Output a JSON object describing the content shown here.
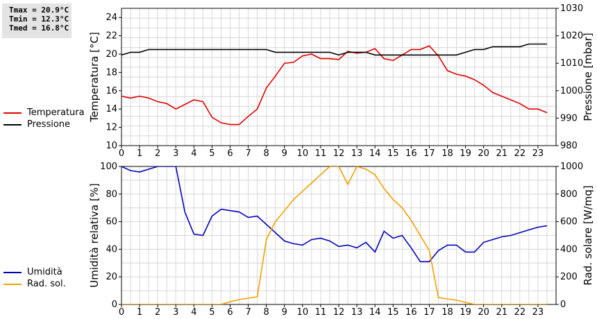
{
  "stats": {
    "tmax": "Tmax = 20.9°C",
    "tmin": "Tmin = 12.3°C",
    "tmed": "Tmed = 16.8°C"
  },
  "legend_top": [
    {
      "name": "Temperatura",
      "color": "#dd0000"
    },
    {
      "name": "Pressione",
      "color": "#000000"
    }
  ],
  "legend_bottom": [
    {
      "name": "Umidità",
      "color": "#0000bb"
    },
    {
      "name": "Rad. sol.",
      "color": "#f0a000"
    }
  ],
  "chart_data": [
    {
      "type": "line",
      "xlim": [
        0,
        24
      ],
      "x_ticks": [
        "0",
        "1",
        "2",
        "3",
        "4",
        "5",
        "6",
        "7",
        "8",
        "9",
        "10",
        "11",
        "12",
        "13",
        "14",
        "15",
        "16",
        "17",
        "18",
        "19",
        "20",
        "21",
        "22",
        "23"
      ],
      "ylabel": "Temperatura [°C]",
      "ylim": [
        10,
        25
      ],
      "y_ticks": [
        "10",
        "12",
        "14",
        "16",
        "18",
        "20",
        "22",
        "24"
      ],
      "y2label": "Pressione [mbar]",
      "y2lim": [
        980,
        1030
      ],
      "y2_ticks": [
        "980",
        "990",
        "1000",
        "1010",
        "1020",
        "1030"
      ],
      "grid": true,
      "legend_position": "left",
      "series": [
        {
          "name": "Temperatura",
          "axis": "left",
          "color": "#dd0000",
          "x": [
            0,
            0.5,
            1,
            1.5,
            2,
            2.5,
            3,
            3.5,
            4,
            4.5,
            5,
            5.5,
            6,
            6.5,
            7,
            7.5,
            8,
            8.5,
            9,
            9.5,
            10,
            10.5,
            11,
            11.5,
            12,
            12.5,
            13,
            13.5,
            14,
            14.5,
            15,
            15.5,
            16,
            16.5,
            17,
            17.5,
            18,
            18.5,
            19,
            19.5,
            20,
            20.5,
            21,
            21.5,
            22,
            22.5,
            23,
            23.5
          ],
          "y": [
            15.4,
            15.2,
            15.4,
            15.2,
            14.8,
            14.6,
            14.0,
            14.5,
            15.0,
            14.8,
            13.1,
            12.5,
            12.3,
            12.3,
            13.2,
            14.0,
            16.3,
            17.6,
            19.0,
            19.1,
            19.8,
            20.0,
            19.5,
            19.5,
            19.4,
            20.3,
            20.1,
            20.2,
            20.6,
            19.5,
            19.3,
            19.9,
            20.5,
            20.5,
            20.9,
            19.8,
            18.2,
            17.8,
            17.6,
            17.2,
            16.6,
            15.8,
            15.4,
            15.0,
            14.6,
            14.0,
            14.0,
            13.6
          ]
        },
        {
          "name": "Pressione",
          "axis": "right",
          "color": "#000000",
          "x": [
            0,
            0.5,
            1,
            1.5,
            2,
            2.5,
            3,
            3.5,
            4,
            4.5,
            5,
            5.5,
            6,
            6.5,
            7,
            7.5,
            8,
            8.5,
            9,
            9.5,
            10,
            10.5,
            11,
            11.5,
            12,
            12.5,
            13,
            13.5,
            14,
            14.5,
            15,
            15.5,
            16,
            16.5,
            17,
            17.5,
            18,
            18.5,
            19,
            19.5,
            20,
            20.5,
            21,
            21.5,
            22,
            22.5,
            23,
            23.5
          ],
          "y": [
            1013,
            1014,
            1014,
            1015,
            1015,
            1015,
            1015,
            1015,
            1015,
            1015,
            1015,
            1015,
            1015,
            1015,
            1015,
            1015,
            1015,
            1014,
            1014,
            1014,
            1014,
            1014,
            1014,
            1014,
            1013,
            1014,
            1014,
            1014,
            1013,
            1013,
            1013,
            1013,
            1013,
            1013,
            1013,
            1013,
            1013,
            1013,
            1014,
            1015,
            1015,
            1016,
            1016,
            1016,
            1016,
            1017,
            1017,
            1017
          ]
        }
      ]
    },
    {
      "type": "line",
      "xlim": [
        0,
        24
      ],
      "x_ticks": [
        "0",
        "1",
        "2",
        "3",
        "4",
        "5",
        "6",
        "7",
        "8",
        "9",
        "10",
        "11",
        "12",
        "13",
        "14",
        "15",
        "16",
        "17",
        "18",
        "19",
        "20",
        "21",
        "22",
        "23"
      ],
      "ylabel": "Umidità relativa [%]",
      "ylim": [
        0,
        100
      ],
      "y_ticks": [
        "0",
        "20",
        "40",
        "60",
        "80",
        "100"
      ],
      "y2label": "Rad. solare [W/mq]",
      "y2lim": [
        0,
        1000
      ],
      "y2_ticks": [
        "0",
        "200",
        "400",
        "600",
        "800",
        "1000"
      ],
      "grid": true,
      "legend_position": "left",
      "series": [
        {
          "name": "Umidità",
          "axis": "left",
          "color": "#0000bb",
          "x": [
            0,
            0.5,
            1,
            1.5,
            2,
            2.5,
            3,
            3.5,
            4,
            4.5,
            5,
            5.5,
            6,
            6.5,
            7,
            7.5,
            8,
            8.5,
            9,
            9.5,
            10,
            10.5,
            11,
            11.5,
            12,
            12.5,
            13,
            13.5,
            14,
            14.5,
            15,
            15.5,
            16,
            16.5,
            17,
            17.5,
            18,
            18.5,
            19,
            19.5,
            20,
            20.5,
            21,
            21.5,
            22,
            22.5,
            23,
            23.5
          ],
          "y": [
            100,
            97,
            96,
            98,
            100,
            100,
            100,
            67,
            51,
            50,
            64,
            69,
            68,
            67,
            63,
            64,
            58,
            52,
            46,
            44,
            43,
            47,
            48,
            46,
            42,
            43,
            41,
            45,
            38,
            53,
            48,
            50,
            41,
            31,
            31,
            39,
            43,
            43,
            38,
            38,
            45,
            47,
            49,
            50,
            52,
            54,
            56,
            57
          ]
        },
        {
          "name": "Rad. sol.",
          "axis": "right",
          "color": "#f0a000",
          "x": [
            0,
            0.5,
            1,
            1.5,
            2,
            2.5,
            3,
            3.5,
            4,
            4.5,
            5,
            5.5,
            6,
            6.5,
            7,
            7.5,
            8,
            8.5,
            9,
            9.5,
            10,
            10.5,
            11,
            11.5,
            12,
            12.5,
            13,
            13.5,
            14,
            14.5,
            15,
            15.5,
            16,
            16.5,
            17,
            17.5,
            18,
            18.5,
            19,
            19.5,
            20,
            20.5,
            21,
            21.5,
            22,
            22.5,
            23,
            23.5
          ],
          "y": [
            0,
            0,
            0,
            0,
            0,
            0,
            0,
            0,
            0,
            0,
            0,
            0,
            20,
            35,
            45,
            55,
            470,
            600,
            680,
            760,
            820,
            880,
            940,
            1000,
            1000,
            870,
            1000,
            980,
            940,
            840,
            760,
            700,
            610,
            500,
            390,
            50,
            40,
            30,
            15,
            0,
            0,
            0,
            0,
            0,
            0,
            0,
            0,
            0
          ]
        }
      ]
    }
  ]
}
